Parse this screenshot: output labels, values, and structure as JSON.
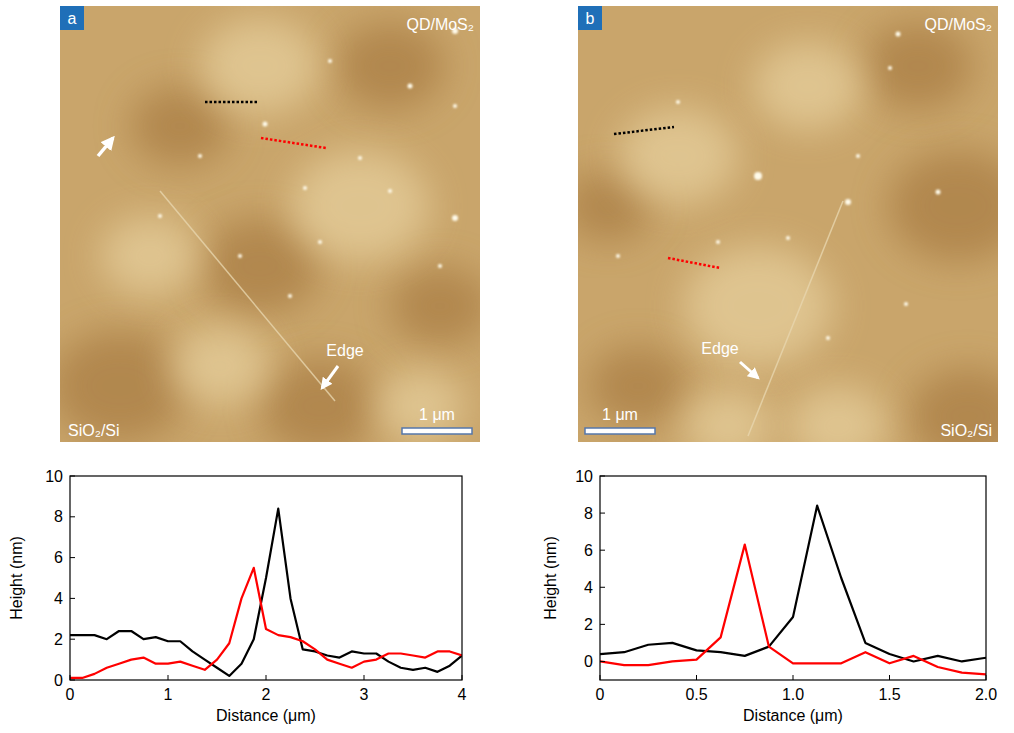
{
  "panels": [
    {
      "letter": "a",
      "sample": "QD/MoS₂",
      "substrate": "SiO₂/Si",
      "edge": "Edge",
      "scale_bar": "1 μm"
    },
    {
      "letter": "b",
      "sample": "QD/MoS₂",
      "substrate": "SiO₂/Si",
      "edge": "Edge",
      "scale_bar": "1 μm"
    }
  ],
  "chart_data": [
    {
      "type": "line",
      "x_label": "Distance (μm)",
      "y_label": "Height (nm)",
      "x": [
        0,
        0.125,
        0.25,
        0.375,
        0.5,
        0.625,
        0.75,
        0.875,
        1,
        1.125,
        1.25,
        1.375,
        1.5,
        1.625,
        1.75,
        1.875,
        2,
        2.125,
        2.25,
        2.375,
        2.5,
        2.625,
        2.75,
        2.875,
        3,
        3.125,
        3.25,
        3.375,
        3.5,
        3.625,
        3.75,
        3.875,
        4
      ],
      "xlim": [
        0,
        4
      ],
      "xticks": [
        0,
        1,
        2,
        3,
        4
      ],
      "ylim": [
        0,
        10
      ],
      "yticks": [
        0,
        2,
        4,
        6,
        8,
        10
      ],
      "grid": false,
      "series": [
        {
          "color": "#000000",
          "values": [
            2.2,
            2.2,
            2.2,
            2.0,
            2.4,
            2.4,
            2.0,
            2.1,
            1.9,
            1.9,
            1.4,
            1.0,
            0.6,
            0.2,
            0.8,
            2.0,
            5.0,
            8.4,
            4.0,
            1.5,
            1.4,
            1.2,
            1.1,
            1.4,
            1.3,
            1.3,
            0.9,
            0.6,
            0.5,
            0.6,
            0.4,
            0.7,
            1.2
          ]
        },
        {
          "color": "#ff0000",
          "values": [
            0.1,
            0.1,
            0.3,
            0.6,
            0.8,
            1.0,
            1.1,
            0.8,
            0.8,
            0.9,
            0.7,
            0.5,
            1.0,
            1.8,
            4.0,
            5.5,
            2.5,
            2.2,
            2.1,
            1.9,
            1.5,
            1.0,
            0.8,
            0.6,
            0.9,
            1.0,
            1.3,
            1.3,
            1.2,
            1.1,
            1.4,
            1.4,
            1.2
          ]
        }
      ]
    },
    {
      "type": "line",
      "x_label": "Distance (μm)",
      "y_label": "Height (nm)",
      "x": [
        0,
        0.125,
        0.25,
        0.375,
        0.5,
        0.625,
        0.75,
        0.875,
        1,
        1.125,
        1.25,
        1.375,
        1.5,
        1.625,
        1.75,
        1.875,
        2
      ],
      "xlim": [
        0,
        2
      ],
      "xticks": [
        0,
        0.5,
        {
          "value": 1,
          "label": "1.0"
        },
        1.5,
        {
          "value": 2,
          "label": "2.0"
        }
      ],
      "ylim": [
        -1,
        10
      ],
      "yticks": [
        0,
        2,
        4,
        6,
        8,
        10
      ],
      "grid": false,
      "series": [
        {
          "color": "#000000",
          "values": [
            0.4,
            0.5,
            0.9,
            1.0,
            0.6,
            0.5,
            0.3,
            0.8,
            2.4,
            8.4,
            4.5,
            1.0,
            0.4,
            0.0,
            0.3,
            0.0,
            0.2
          ]
        },
        {
          "color": "#ff0000",
          "values": [
            0.0,
            -0.2,
            -0.2,
            0.0,
            0.1,
            1.3,
            6.3,
            0.8,
            -0.1,
            -0.1,
            -0.1,
            0.5,
            -0.1,
            0.3,
            -0.3,
            -0.6,
            -0.7
          ]
        }
      ]
    }
  ]
}
